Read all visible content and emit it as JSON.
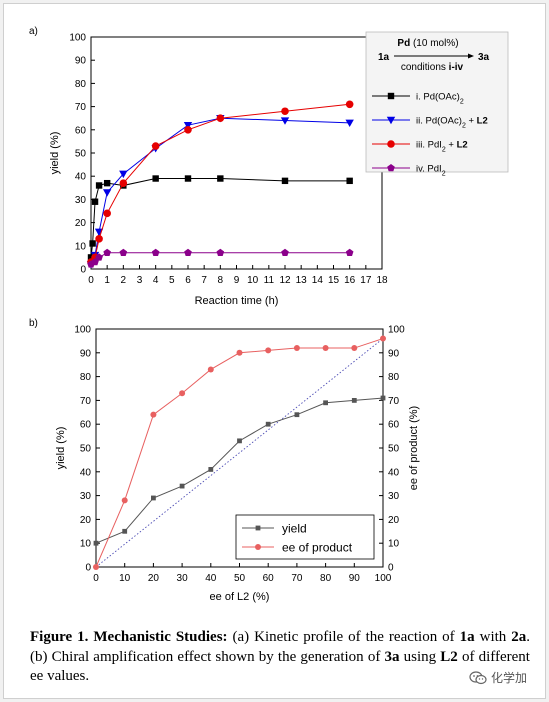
{
  "chart_data": [
    {
      "type": "line",
      "panel_label": "a)",
      "xlabel": "Reaction time (h)",
      "ylabel": "yield (%)",
      "xlim": [
        0,
        18
      ],
      "ylim": [
        0,
        100
      ],
      "xticks": [
        0,
        1,
        2,
        3,
        4,
        5,
        6,
        7,
        8,
        9,
        10,
        11,
        12,
        13,
        14,
        15,
        16,
        17,
        18
      ],
      "yticks": [
        0,
        10,
        20,
        30,
        40,
        50,
        60,
        70,
        80,
        90,
        100
      ],
      "grid": false,
      "legend_position": "right",
      "scheme": {
        "reactant": "1a",
        "product": "3a",
        "above_arrow_bold": "Pd",
        "above_arrow_rest": " (10 mol%)",
        "below_arrow_plain": "conditions ",
        "below_arrow_bold": "i-iv"
      },
      "series": [
        {
          "name_parts": [
            {
              "t": "i. Pd(OAc)",
              "b": false
            },
            {
              "t": "2",
              "b": false,
              "sub": true
            }
          ],
          "marker": "square",
          "color": "#000000",
          "x": [
            0,
            0.1,
            0.25,
            0.5,
            1,
            2,
            4,
            6,
            8,
            12,
            16
          ],
          "y": [
            5,
            11,
            29,
            36,
            37,
            36,
            39,
            39,
            39,
            38,
            38
          ]
        },
        {
          "name_parts": [
            {
              "t": "ii. Pd(OAc)",
              "b": false
            },
            {
              "t": "2",
              "b": false,
              "sub": true
            },
            {
              "t": " + ",
              "b": false
            },
            {
              "t": "L2",
              "b": true
            }
          ],
          "marker": "triangle-down",
          "color": "#0000e6",
          "x": [
            0,
            0.25,
            0.5,
            1,
            2,
            4,
            6,
            8,
            12,
            16
          ],
          "y": [
            2,
            6,
            16,
            33,
            41,
            52,
            62,
            65,
            64,
            63
          ]
        },
        {
          "name_parts": [
            {
              "t": "iii. PdI",
              "b": false
            },
            {
              "t": "2",
              "b": false,
              "sub": true
            },
            {
              "t": " + ",
              "b": false
            },
            {
              "t": "L2",
              "b": true
            }
          ],
          "marker": "circle",
          "color": "#e60000",
          "x": [
            0,
            0.25,
            0.5,
            1,
            2,
            4,
            6,
            8,
            12,
            16
          ],
          "y": [
            3,
            5,
            13,
            24,
            37,
            53,
            60,
            65,
            68,
            71
          ]
        },
        {
          "name_parts": [
            {
              "t": "iv. PdI",
              "b": false
            },
            {
              "t": "2",
              "b": false,
              "sub": true
            }
          ],
          "marker": "pentagon",
          "color": "#8b008b",
          "x": [
            0,
            0.25,
            0.5,
            1,
            2,
            4,
            6,
            8,
            12,
            16
          ],
          "y": [
            2,
            3,
            5,
            7,
            7,
            7,
            7,
            7,
            7,
            7
          ]
        }
      ]
    },
    {
      "type": "line",
      "panel_label": "b)",
      "xlabel": "ee of L2 (%)",
      "ylabel": "yield (%)",
      "y2label": "ee of product (%)",
      "xlim": [
        0,
        100
      ],
      "ylim": [
        0,
        100
      ],
      "y2lim": [
        0,
        100
      ],
      "xticks": [
        0,
        10,
        20,
        30,
        40,
        50,
        60,
        70,
        80,
        90,
        100
      ],
      "yticks": [
        0,
        10,
        20,
        30,
        40,
        50,
        60,
        70,
        80,
        90,
        100
      ],
      "grid": false,
      "legend_position": "bottom-right",
      "reference_line": {
        "style": "dotted",
        "color": "#4b4bb4",
        "x": [
          0,
          100
        ],
        "y": [
          0,
          96
        ]
      },
      "series": [
        {
          "name": "yield",
          "axis": "left",
          "marker": "square",
          "color": "#555555",
          "x": [
            0,
            10,
            20,
            30,
            40,
            50,
            60,
            70,
            80,
            90,
            100
          ],
          "y": [
            10,
            15,
            29,
            34,
            41,
            53,
            60,
            64,
            69,
            70,
            71
          ]
        },
        {
          "name": "ee of product",
          "axis": "right",
          "marker": "circle",
          "color": "#e86060",
          "x": [
            0,
            10,
            20,
            30,
            40,
            50,
            60,
            70,
            80,
            90,
            100
          ],
          "y": [
            0,
            28,
            64,
            73,
            83,
            90,
            91,
            92,
            92,
            92,
            96
          ]
        }
      ]
    }
  ],
  "caption": {
    "title": "Figure 1. Mechanistic Studies:",
    "t1": " (a) Kinetic profile of the reaction of ",
    "c1": "1a",
    "t2": " with ",
    "c2": "2a",
    "t3": ". (b) Chiral amplification effect shown by the generation of ",
    "c3": "3a",
    "t4": " using ",
    "c4": "L2",
    "t5": " of different ee values."
  },
  "watermark": {
    "text": "化学加",
    "icon": "wechat-icon"
  }
}
